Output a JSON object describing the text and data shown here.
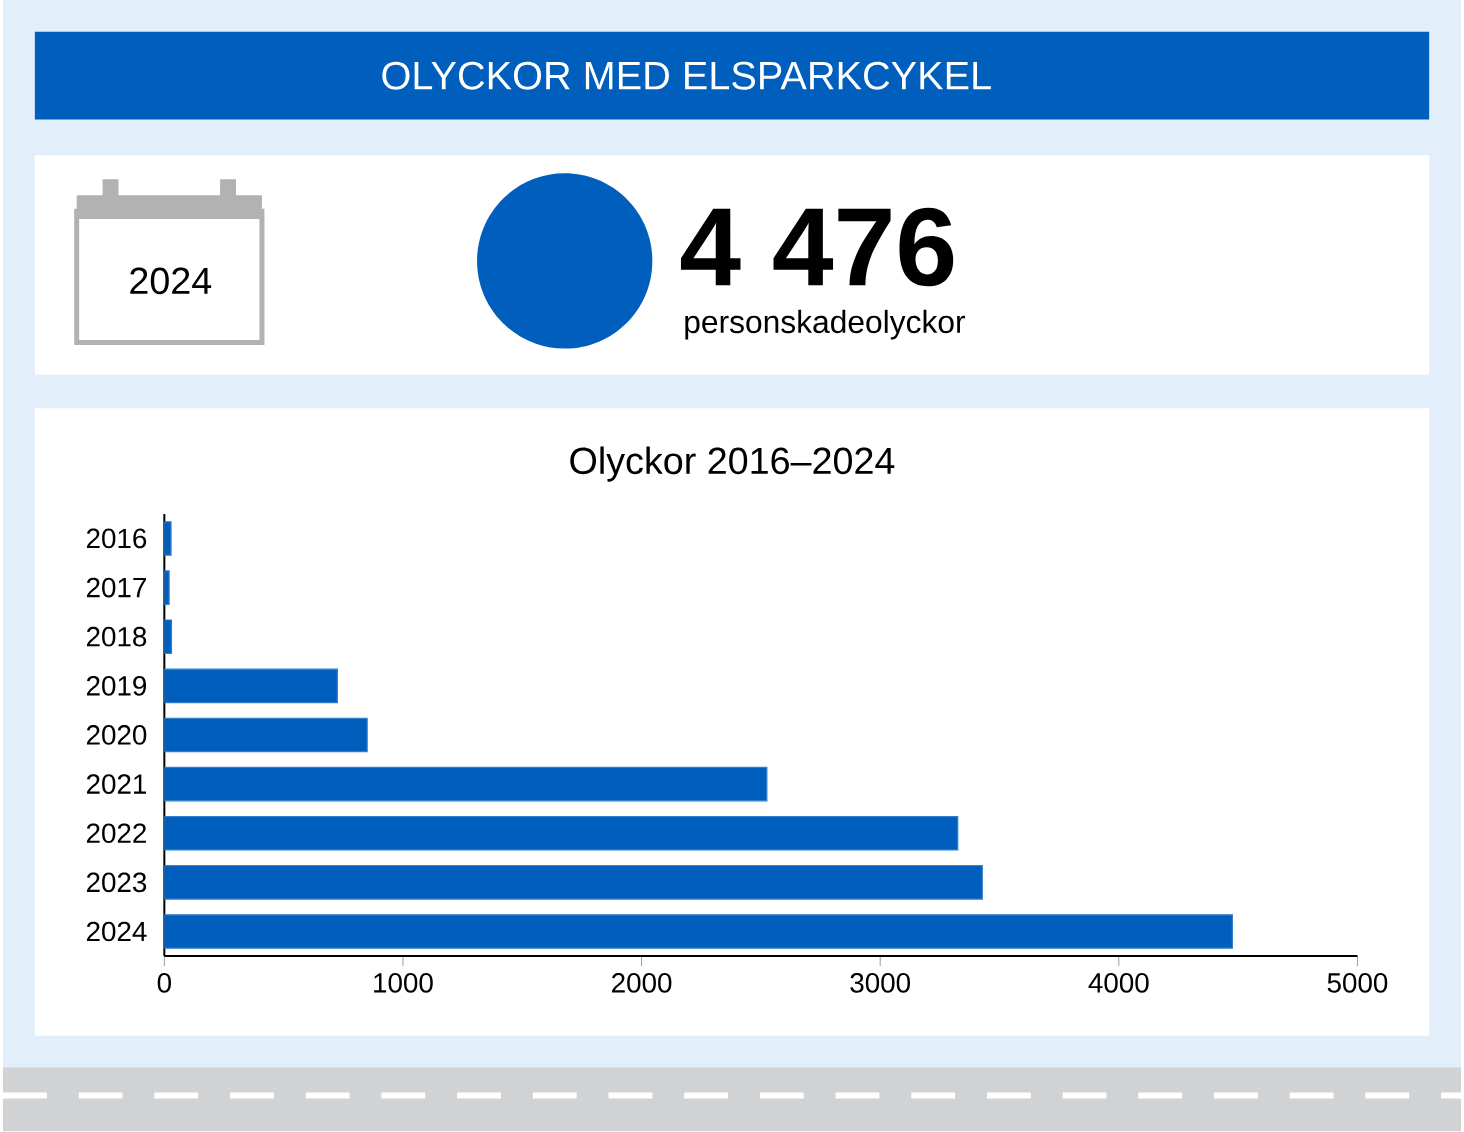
{
  "chart_data": [
    {
      "type": "other",
      "title": "OLYCKOR MED ELSPARKCYKEL",
      "annotations": [
        "2024",
        "4 476",
        "personskadeolyckor"
      ]
    },
    {
      "type": "bar",
      "title": "Olyckor 2016–2024",
      "orientation": "horizontal",
      "categories": [
        "2016",
        "2017",
        "2018",
        "2019",
        "2020",
        "2021",
        "2022",
        "2023",
        "2024"
      ],
      "values": [
        28,
        20,
        30,
        725,
        850,
        2525,
        3325,
        3428,
        4476
      ],
      "color": "#005ebd",
      "xlim": [
        0,
        5000
      ],
      "xticks": [
        0,
        1000,
        2000,
        3000,
        4000,
        5000
      ]
    }
  ]
}
